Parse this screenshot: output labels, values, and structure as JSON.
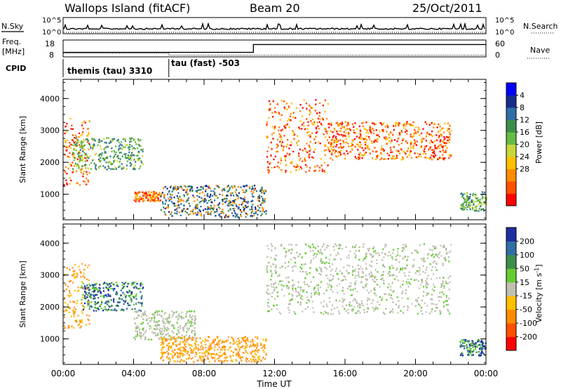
{
  "header": {
    "station": "Wallops Island (fitACF)",
    "beam": "Beam 20",
    "date": "25/Oct/2011"
  },
  "aux_panels": {
    "nsky_label": "N.Sky",
    "nsearch_label": "N.Search",
    "noise_ticks": [
      "10^5",
      "10^0"
    ],
    "freq_label_line1": "Freq.",
    "freq_label_line2": "[MHz]",
    "freq_ticks": [
      "18",
      "8"
    ],
    "nave_label": "Nave",
    "nave_ticks": [
      "60",
      "0"
    ],
    "cpid_label": "CPID",
    "cpid_segments": [
      {
        "name": "themis (tau) 3310",
        "start_hour": 0,
        "end_hour": 6
      },
      {
        "name": "tau (fast) -503",
        "start_hour": 6,
        "end_hour": 24
      }
    ],
    "freq_profile": [
      {
        "start_hour": 0,
        "end_hour": 6,
        "value_mhz": 10.2
      },
      {
        "start_hour": 6,
        "end_hour": 24,
        "value_mhz": 9.0
      }
    ],
    "nave_profile": [
      {
        "start_hour": 0,
        "end_hour": 10.8,
        "value": 16
      },
      {
        "start_hour": 10.8,
        "end_hour": 24,
        "value": 44
      }
    ]
  },
  "chart_data": [
    {
      "type": "heatmap",
      "title": "",
      "xlabel": "",
      "ylabel": "Slant Range [km]",
      "xlim_hours": [
        0,
        24
      ],
      "ylim_km": [
        200,
        4600
      ],
      "yticks": [
        1000,
        2000,
        3000,
        4000
      ],
      "colorbar": {
        "label": "Power [dB]",
        "ticks": [
          "4",
          "8",
          "12",
          "16",
          "20",
          "24",
          "28"
        ],
        "colors": [
          "#0000ff",
          "#1a2b8c",
          "#2e6fa6",
          "#3c8f4a",
          "#66bb44",
          "#c8d63c",
          "#ffc000",
          "#ff8c00",
          "#ff5000",
          "#ff0000"
        ]
      },
      "echo_regions": [
        {
          "start_hour": 0.0,
          "end_hour": 1.5,
          "range_from_km": 1300,
          "range_to_km": 3400,
          "level": "high"
        },
        {
          "start_hour": 0.5,
          "end_hour": 4.5,
          "range_from_km": 1800,
          "range_to_km": 2800,
          "level": "medium"
        },
        {
          "start_hour": 4.0,
          "end_hour": 5.5,
          "range_from_km": 800,
          "range_to_km": 1100,
          "level": "high"
        },
        {
          "start_hour": 5.5,
          "end_hour": 11.5,
          "range_from_km": 300,
          "range_to_km": 1300,
          "level": "low"
        },
        {
          "start_hour": 11.5,
          "end_hour": 15.0,
          "range_from_km": 1700,
          "range_to_km": 4000,
          "level": "high"
        },
        {
          "start_hour": 15.0,
          "end_hour": 22.0,
          "range_from_km": 2100,
          "range_to_km": 3300,
          "level": "high"
        },
        {
          "start_hour": 22.5,
          "end_hour": 24.0,
          "range_from_km": 500,
          "range_to_km": 1100,
          "level": "medium"
        }
      ]
    },
    {
      "type": "heatmap",
      "title": "",
      "xlabel": "Time UT",
      "ylabel": "Slant Range [km]",
      "xlim_hours": [
        0,
        24
      ],
      "ylim_km": [
        200,
        4600
      ],
      "xticks": [
        "00:00",
        "04:00",
        "08:00",
        "12:00",
        "16:00",
        "20:00",
        "00:00"
      ],
      "yticks": [
        1000,
        2000,
        3000,
        4000
      ],
      "colorbar": {
        "label": "Velocity [m s",
        "label_superscript": "-1",
        "label_close": "]",
        "ticks": [
          "200",
          "100",
          "50",
          "15",
          "-15",
          "-50",
          "-100",
          "-200"
        ],
        "colors": [
          "#1f2fa0",
          "#2e6fa6",
          "#3c8f4a",
          "#66cc33",
          "#c0c0b0",
          "#ffc000",
          "#ff8c00",
          "#ff5000",
          "#ff0000"
        ]
      },
      "echo_regions": [
        {
          "start_hour": 0.0,
          "end_hour": 1.5,
          "range_from_km": 1300,
          "range_to_km": 3400,
          "level": "negative"
        },
        {
          "start_hour": 1.0,
          "end_hour": 4.5,
          "range_from_km": 1900,
          "range_to_km": 2800,
          "level": "positive"
        },
        {
          "start_hour": 4.0,
          "end_hour": 7.5,
          "range_from_km": 1000,
          "range_to_km": 1900,
          "level": "near-zero"
        },
        {
          "start_hour": 5.5,
          "end_hour": 11.5,
          "range_from_km": 300,
          "range_to_km": 1100,
          "level": "negative"
        },
        {
          "start_hour": 11.5,
          "end_hour": 22.0,
          "range_from_km": 1800,
          "range_to_km": 4000,
          "level": "near-zero"
        },
        {
          "start_hour": 22.5,
          "end_hour": 24.0,
          "range_from_km": 500,
          "range_to_km": 1000,
          "level": "positive"
        }
      ]
    }
  ]
}
